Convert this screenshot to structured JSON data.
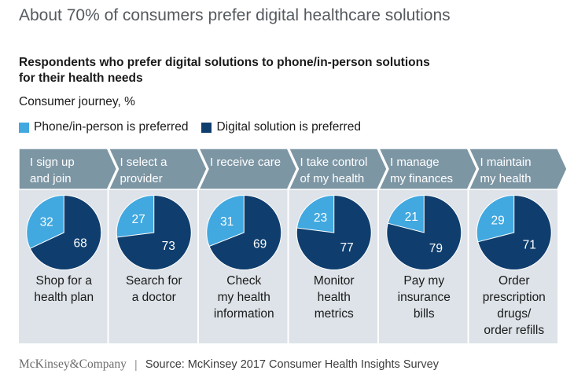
{
  "title": "About 70% of consumers prefer digital healthcare solutions",
  "subtitle_lines": [
    "Respondents who prefer digital solutions to phone/in-person solutions",
    "for their health needs"
  ],
  "units": "Consumer journey, %",
  "colors": {
    "phone": "#41a8e0",
    "digital": "#0f3e6e",
    "header": "#7d96a4",
    "panel": "#dde3e8"
  },
  "chart_data": {
    "type": "pie",
    "legend": [
      {
        "key": "phone",
        "label": "Phone/in-person is preferred"
      },
      {
        "key": "digital",
        "label": "Digital solution is preferred"
      }
    ],
    "stages": [
      {
        "stage": [
          "I sign up",
          "and join"
        ],
        "label": [
          "Shop for a",
          "health plan"
        ],
        "phone": 32,
        "digital": 68
      },
      {
        "stage": [
          "I select a",
          "provider"
        ],
        "label": [
          "Search for",
          "a doctor"
        ],
        "phone": 27,
        "digital": 73
      },
      {
        "stage": [
          "I receive care"
        ],
        "label": [
          "Check",
          "my health",
          "information"
        ],
        "phone": 31,
        "digital": 69
      },
      {
        "stage": [
          "I take control",
          "of my health"
        ],
        "label": [
          "Monitor",
          "health",
          "metrics"
        ],
        "phone": 23,
        "digital": 77
      },
      {
        "stage": [
          "I manage",
          "my finances"
        ],
        "label": [
          "Pay my",
          "insurance",
          "bills"
        ],
        "phone": 21,
        "digital": 79
      },
      {
        "stage": [
          "I maintain",
          "my health"
        ],
        "label": [
          "Order",
          "prescription",
          "drugs/",
          "order refills"
        ],
        "phone": 29,
        "digital": 71
      }
    ]
  },
  "footer": {
    "brand": "McKinsey&Company",
    "separator": "|",
    "source": "Source: McKinsey 2017 Consumer Health Insights Survey"
  }
}
